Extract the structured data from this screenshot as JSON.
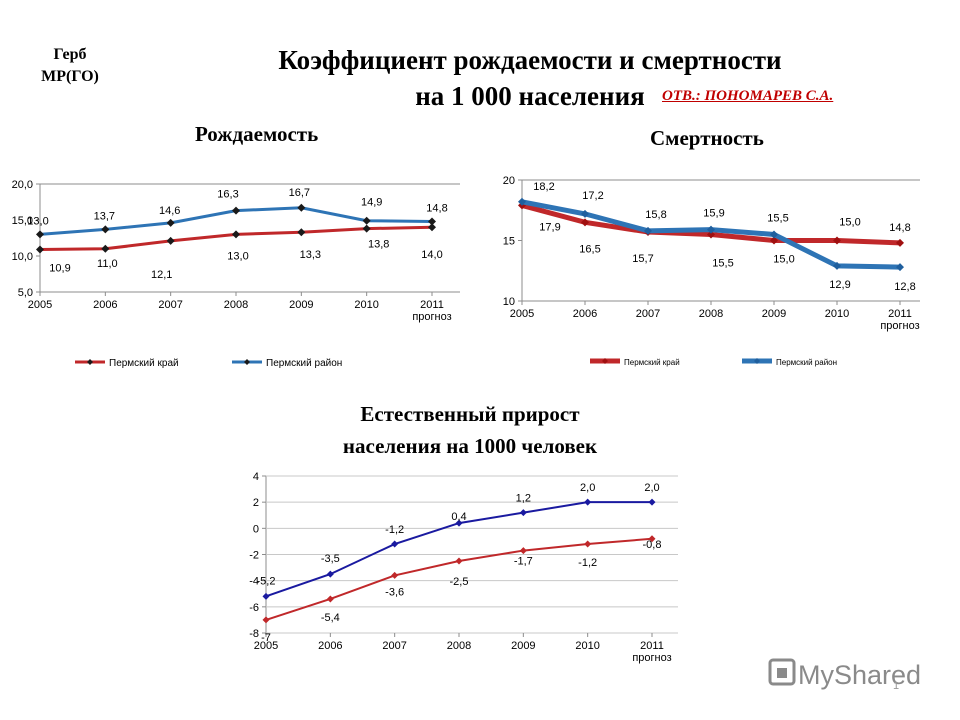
{
  "slide": {
    "emblem": "Герб\nМР(ГО)",
    "title": "Коэффициент рождаемости и смертности\nна 1 000 населения",
    "responsible": "ОТВ.: ПОНОМАРЕВ С.А.",
    "subtitle_birth": "Рождаемость",
    "subtitle_death": "Смертность",
    "subtitle_growth": "Естественный прирост\nнаселения на 1000 человек",
    "watermark": "MyShared",
    "page_number": "1"
  },
  "colors": {
    "red": "#c0282a",
    "blue": "#2e74b5",
    "navy": "#1a1aa0",
    "axis": "#8c8c8c",
    "marker": "#1a1a1a"
  },
  "chart_data": [
    {
      "type": "line",
      "title": "Рождаемость",
      "categories": [
        "2005",
        "2006",
        "2007",
        "2008",
        "2009",
        "2010",
        "2011\nпрогноз"
      ],
      "ylim": [
        5,
        20
      ],
      "yticks": [
        "5,0",
        "10,0",
        "15,0",
        "20,0"
      ],
      "series": [
        {
          "name": "Пермский край",
          "values": [
            10.9,
            11.0,
            12.1,
            13.0,
            13.3,
            13.8,
            14.0
          ],
          "labels": [
            "10,9",
            "11,0",
            "12,1",
            "13,0",
            "13,3",
            "13,8",
            "14,0"
          ]
        },
        {
          "name": "Пермский район",
          "values": [
            13.0,
            13.7,
            14.6,
            16.3,
            16.7,
            14.9,
            14.8
          ],
          "labels": [
            "13,0",
            "13,7",
            "14,6",
            "16,3",
            "16,7",
            "14,9",
            "14,8"
          ]
        }
      ],
      "legend": "bottom"
    },
    {
      "type": "line",
      "title": "Смертность",
      "categories": [
        "2005",
        "2006",
        "2007",
        "2008",
        "2009",
        "2010",
        "2011\nпрогноз"
      ],
      "ylim": [
        10,
        20
      ],
      "yticks": [
        "10",
        "15",
        "20"
      ],
      "series": [
        {
          "name": "Пермский край",
          "values": [
            17.9,
            16.5,
            15.7,
            15.5,
            15.0,
            15.0,
            14.8
          ],
          "labels": [
            "17,9",
            "16,5",
            "15,7",
            "15,5",
            "15,0",
            "15,0",
            "14,8"
          ]
        },
        {
          "name": "Пермский район",
          "values": [
            18.2,
            17.2,
            15.8,
            15.9,
            15.5,
            12.9,
            12.8
          ],
          "labels": [
            "18,2",
            "17,2",
            "15,8",
            "15,9",
            "15,5",
            "12,9",
            "12,8"
          ]
        }
      ],
      "legend": "bottom"
    },
    {
      "type": "line",
      "title": "Естественный прирост населения на 1000 человек",
      "categories": [
        "2005",
        "2006",
        "2007",
        "2008",
        "2009",
        "2010",
        "2011\nпрогноз"
      ],
      "ylim": [
        -8,
        4
      ],
      "yticks": [
        "-8",
        "-6",
        "-4",
        "-2",
        "0",
        "2",
        "4"
      ],
      "series": [
        {
          "name": "Пермский край",
          "values": [
            -7,
            -5.4,
            -3.6,
            -2.5,
            -1.7,
            -1.2,
            -0.8
          ],
          "labels": [
            "-7",
            "-5,4",
            "-3,6",
            "-2,5",
            "-1,7",
            "-1,2",
            "-0,8"
          ]
        },
        {
          "name": "Пермский район",
          "values": [
            -5.2,
            -3.5,
            -1.2,
            0.4,
            1.2,
            2.0,
            2.0
          ],
          "labels": [
            "-5,2",
            "-3,5",
            "-1,2",
            "0,4",
            "1,2",
            "2,0",
            "2,0"
          ]
        }
      ]
    }
  ]
}
